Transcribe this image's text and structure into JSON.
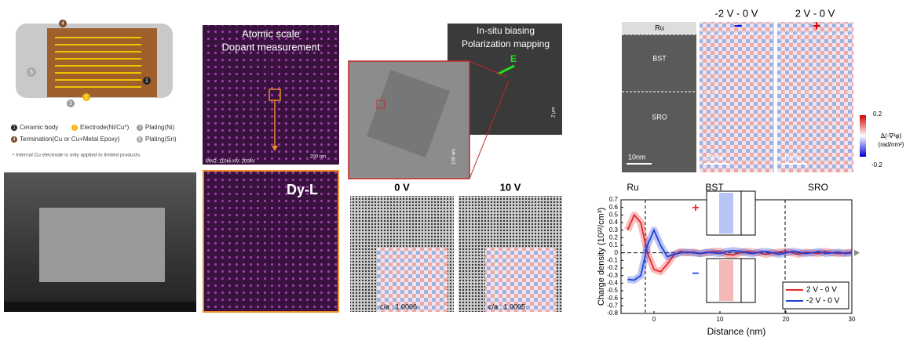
{
  "capacitor": {
    "markers": [
      "1",
      "2",
      "3",
      "4",
      "5"
    ],
    "legend": [
      {
        "num": "1",
        "text": "Ceramic body"
      },
      {
        "num": "2",
        "text": "Electrode(Ni/Cu*)"
      },
      {
        "num": "3",
        "text": "Plating(Ni)"
      },
      {
        "num": "4",
        "text": "Termination(Cu or Cu+Metal Epoxy)"
      },
      {
        "num": "5",
        "text": "Plating(Sn)"
      }
    ],
    "note": "• Internal Cu electrode is only applied to limited products."
  },
  "eds": {
    "title_lines": [
      "Atomic scale",
      "Dopant measurement"
    ],
    "scale": "200 nm",
    "meta": "MAG: 110kx  HV: 200kV",
    "map_label": "Dy-L"
  },
  "insitu": {
    "title_lines": [
      "In-situ biasing",
      "Polarization mapping"
    ],
    "field": "E",
    "scale1": "100 nm",
    "scale2": "2 µm",
    "panels": [
      {
        "label": "0 V",
        "ratio": "c/a : 1.0006"
      },
      {
        "label": "10 V",
        "ratio": "c/a : 1.0005"
      }
    ]
  },
  "stem": {
    "headers": [
      "-2 V - 0 V",
      "2 V - 0 V"
    ],
    "layers": [
      "Ru",
      "BST",
      "SRO"
    ],
    "scale": "10nm",
    "signs": [
      "−",
      "+"
    ],
    "colorbar": {
      "max": "0.2",
      "min": "-0.2",
      "label_lines": [
        "Δ(-∇²φ)",
        "(rad/nm²)"
      ]
    }
  },
  "chart_data": {
    "type": "line",
    "regions": [
      "Ru",
      "BST",
      "SRO"
    ],
    "inset_signs": [
      "+",
      "−"
    ],
    "xlabel": "Distance (nm)",
    "ylabel": "Charge density (10²²/cm³)",
    "x": [
      -4,
      -3,
      -2,
      -1,
      0,
      1,
      2,
      3,
      4,
      5,
      6,
      7,
      8,
      9,
      10,
      11,
      12,
      13,
      14,
      15,
      16,
      17,
      18,
      19,
      20,
      21,
      22,
      23,
      24,
      25,
      26,
      27,
      28,
      29,
      30
    ],
    "series": [
      {
        "name": "2 V - 0 V",
        "color": "#e8262a",
        "values": [
          0.3,
          0.5,
          0.4,
          0.0,
          -0.22,
          -0.25,
          -0.15,
          -0.03,
          0.02,
          0.0,
          0.01,
          -0.01,
          0.0,
          0.02,
          0.02,
          -0.02,
          -0.03,
          0.0,
          0.02,
          0.01,
          0.0,
          -0.02,
          0.0,
          0.01,
          0.02,
          0.0,
          -0.02,
          0.01,
          0.0,
          -0.01,
          0.02,
          0.0,
          -0.01,
          0.0,
          0.01
        ]
      },
      {
        "name": "-2 V - 0 V",
        "color": "#1f3fd6",
        "values": [
          -0.35,
          -0.36,
          -0.3,
          0.1,
          0.3,
          0.1,
          -0.05,
          -0.02,
          0.0,
          0.01,
          0.0,
          -0.01,
          0.01,
          0.0,
          -0.01,
          0.02,
          0.03,
          0.02,
          0.0,
          -0.01,
          0.01,
          0.02,
          0.0,
          -0.02,
          0.0,
          0.02,
          0.01,
          -0.01,
          0.0,
          0.02,
          -0.01,
          0.0,
          0.01,
          -0.01,
          0.0
        ]
      }
    ],
    "xlim": [
      -5,
      30
    ],
    "xticks": [
      0,
      10,
      20,
      30
    ],
    "ylim": [
      -0.8,
      0.7
    ],
    "yticks": [
      -0.8,
      -0.7,
      -0.6,
      -0.5,
      -0.4,
      -0.3,
      -0.2,
      -0.1,
      0,
      0.1,
      0.2,
      0.3,
      0.4,
      0.5,
      0.6,
      0.7
    ],
    "legend": "lower right"
  }
}
